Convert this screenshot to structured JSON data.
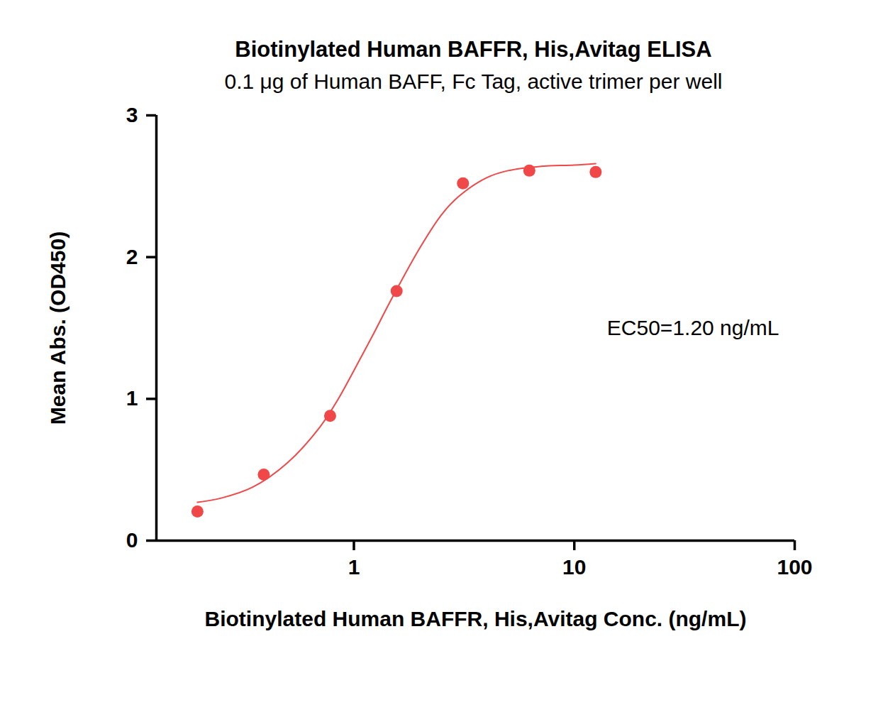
{
  "chart_data": {
    "type": "scatter",
    "title": "Biotinylated Human BAFFR, His,Avitag ELISA",
    "subtitle": "0.1 μg of Human BAFF, Fc Tag, active trimer per well",
    "x_label": "Biotinylated Human BAFFR, His,Avitag Conc. (ng/mL)",
    "y_label": "Mean Abs. (OD450)",
    "annotations": [
      "EC50=1.20 ng/mL"
    ],
    "log": "x",
    "grid": false,
    "xlim": [
      0.127,
      100
    ],
    "xticks": [
      1,
      10,
      100
    ],
    "ylim": [
      0,
      3
    ],
    "yticks": [
      0,
      1,
      2,
      3
    ],
    "series": [
      {
        "type": "scatter",
        "marker": "circle",
        "color": "#f04848",
        "x": [
          0.195,
          0.39,
          0.78,
          1.5625,
          3.125,
          6.25,
          12.5
        ],
        "values": [
          0.205,
          0.466,
          0.88,
          1.76,
          2.52,
          2.61,
          2.6
        ]
      },
      {
        "type": "line",
        "line_style": "solid",
        "color": "#f04848",
        "x": [
          0.195,
          0.25,
          0.35,
          0.5,
          0.7,
          0.85,
          1.0,
          1.2,
          1.5,
          2.0,
          2.5,
          3.0,
          4.0,
          5.0,
          7.0,
          10,
          12.5
        ],
        "values": [
          0.27,
          0.3,
          0.38,
          0.55,
          0.8,
          1.0,
          1.2,
          1.43,
          1.72,
          2.07,
          2.3,
          2.43,
          2.56,
          2.61,
          2.64,
          2.65,
          2.66
        ]
      }
    ]
  }
}
